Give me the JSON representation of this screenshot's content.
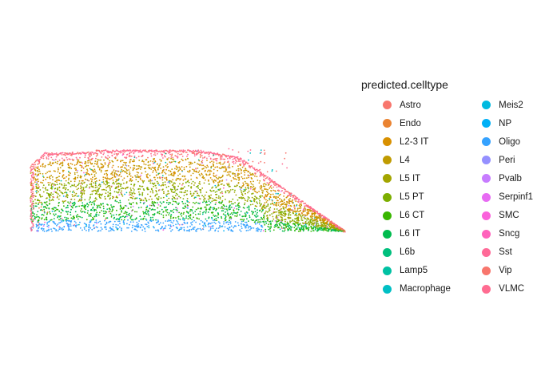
{
  "chart_data": {
    "type": "scatter",
    "title": "",
    "xlabel": "",
    "ylabel": "",
    "grid": false,
    "axes": false,
    "legend_position": "right",
    "legend": {
      "title": "predicted.celltype",
      "entries": [
        {
          "name": "Astro",
          "color": "#F8766D"
        },
        {
          "name": "Endo",
          "color": "#EA8331"
        },
        {
          "name": "L2-3 IT",
          "color": "#D89000"
        },
        {
          "name": "L4",
          "color": "#C09B00"
        },
        {
          "name": "L5 IT",
          "color": "#A3A500"
        },
        {
          "name": "L5 PT",
          "color": "#7CAE00"
        },
        {
          "name": "L6 CT",
          "color": "#39B600"
        },
        {
          "name": "L6 IT",
          "color": "#00BB4E"
        },
        {
          "name": "L6b",
          "color": "#00BF7D"
        },
        {
          "name": "Lamp5",
          "color": "#00C1A3"
        },
        {
          "name": "Macrophage",
          "color": "#00BFC4"
        },
        {
          "name": "Meis2",
          "color": "#00BAE0"
        },
        {
          "name": "NP",
          "color": "#00B0F6"
        },
        {
          "name": "Oligo",
          "color": "#35A2FF"
        },
        {
          "name": "Peri",
          "color": "#9590FF"
        },
        {
          "name": "Pvalb",
          "color": "#C77CFF"
        },
        {
          "name": "Serpinf1",
          "color": "#E76BF3"
        },
        {
          "name": "SMC",
          "color": "#FA62DB"
        },
        {
          "name": "Sncg",
          "color": "#FF62BC"
        },
        {
          "name": "Sst",
          "color": "#FF6A98"
        },
        {
          "name": "Vip",
          "color": "#F8766D"
        },
        {
          "name": "VLMC",
          "color": "#FF6C91"
        }
      ]
    },
    "dominant_types_by_depth": {
      "surface": [
        "VLMC",
        "Astro"
      ],
      "upper": [
        "L2-3 IT",
        "L4"
      ],
      "middle": [
        "L5 IT",
        "L5 PT"
      ],
      "deep": [
        "L6 CT",
        "L6 IT"
      ],
      "white_matter": [
        "Oligo"
      ]
    }
  }
}
